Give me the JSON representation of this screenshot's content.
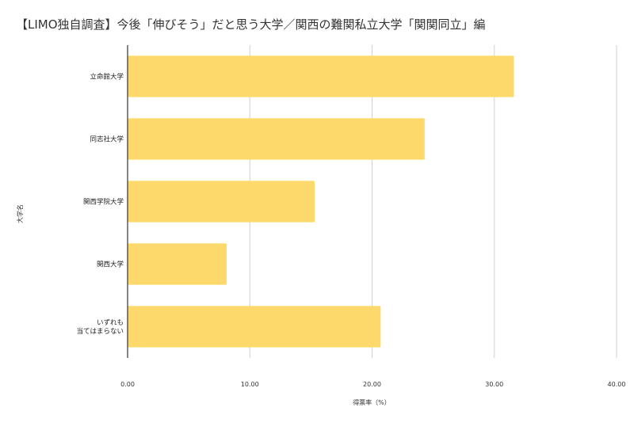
{
  "chart_data": {
    "type": "bar",
    "orientation": "horizontal",
    "title": "【LIMO独自調査】今後「伸びそう」だと思う大学／関西の難関私立大学「関関同立」編",
    "xlabel": "得票率（%）",
    "ylabel": "大学名",
    "categories": [
      [
        "立命館大学"
      ],
      [
        "同志社大学"
      ],
      [
        "関西学院大学"
      ],
      [
        "関西大学"
      ],
      [
        "いずれも",
        "当てはまらない"
      ]
    ],
    "values": [
      31.6,
      24.3,
      15.3,
      8.1,
      20.7
    ],
    "xlim": [
      0,
      40
    ],
    "xticks": [
      "0.00",
      "10.00",
      "20.00",
      "30.00",
      "40.00"
    ],
    "xtick_values": [
      0,
      10,
      20,
      30,
      40
    ],
    "grid": true,
    "legend": "none",
    "bar_color": "#fcd96a",
    "grid_color": "#d0d0d0",
    "axis_color": "#333333"
  }
}
